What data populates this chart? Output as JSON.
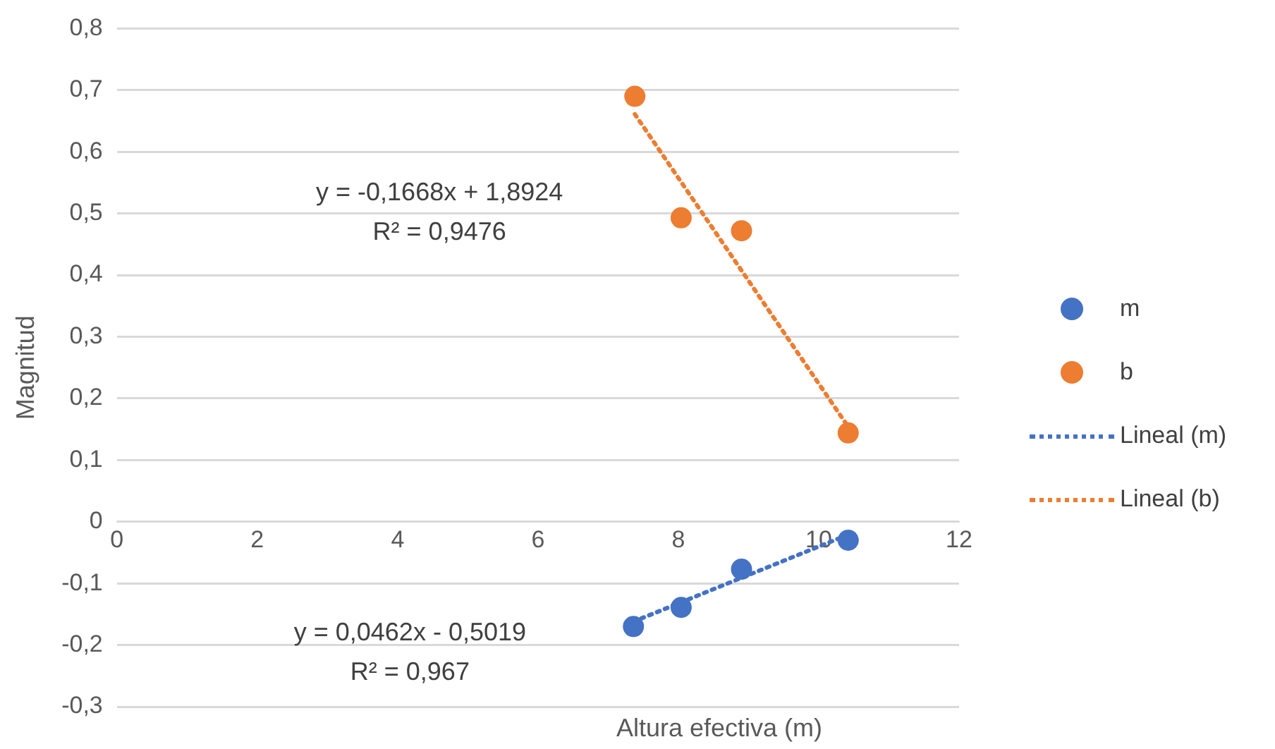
{
  "chart_data": {
    "type": "scatter",
    "xlabel": "Altura efectiva (m)",
    "ylabel": "Magnitud",
    "xlim": [
      0,
      12
    ],
    "xticks": [
      0,
      2,
      4,
      6,
      8,
      10,
      12
    ],
    "ylim": [
      -0.3,
      0.8
    ],
    "yticks": [
      {
        "value": -0.3,
        "label": "-0,3"
      },
      {
        "value": -0.2,
        "label": "-0,2"
      },
      {
        "value": -0.1,
        "label": "-0,1"
      },
      0,
      {
        "value": 0.1,
        "label": "0,1"
      },
      {
        "value": 0.2,
        "label": "0,2"
      },
      {
        "value": 0.3,
        "label": "0,3"
      },
      {
        "value": 0.4,
        "label": "0,4"
      },
      {
        "value": 0.5,
        "label": "0,5"
      },
      {
        "value": 0.6,
        "label": "0,6"
      },
      {
        "value": 0.7,
        "label": "0,7"
      },
      {
        "value": 0.8,
        "label": "0,8"
      }
    ],
    "grid": "y",
    "legend": "right",
    "marker": "circle",
    "series": [
      {
        "name": "m",
        "color": "#4472c4",
        "x": [
          7.36,
          8.04,
          8.9,
          10.42
        ],
        "values": [
          -0.17,
          -0.139,
          -0.077,
          -0.03
        ]
      },
      {
        "name": "b",
        "color": "#ed7d31",
        "x": [
          7.38,
          8.04,
          8.9,
          10.42
        ],
        "values": [
          0.69,
          0.493,
          0.472,
          0.144
        ]
      },
      {
        "name": "Lineal (m)",
        "type": "line",
        "line_style": "dotted",
        "marker": "none",
        "color": "#4472c4",
        "x": [
          7.36,
          10.42
        ],
        "values": [
          -0.162,
          -0.021
        ]
      },
      {
        "name": "Lineal (b)",
        "type": "line",
        "line_style": "dotted",
        "marker": "none",
        "color": "#ed7d31",
        "x": [
          7.38,
          10.42
        ],
        "values": [
          0.661,
          0.154
        ]
      }
    ],
    "annotations": [
      "y = -0,1668x + 1,8924\nR² = 0,9476",
      "y = 0,0462x - 0,5019\nR² = 0,967"
    ]
  }
}
